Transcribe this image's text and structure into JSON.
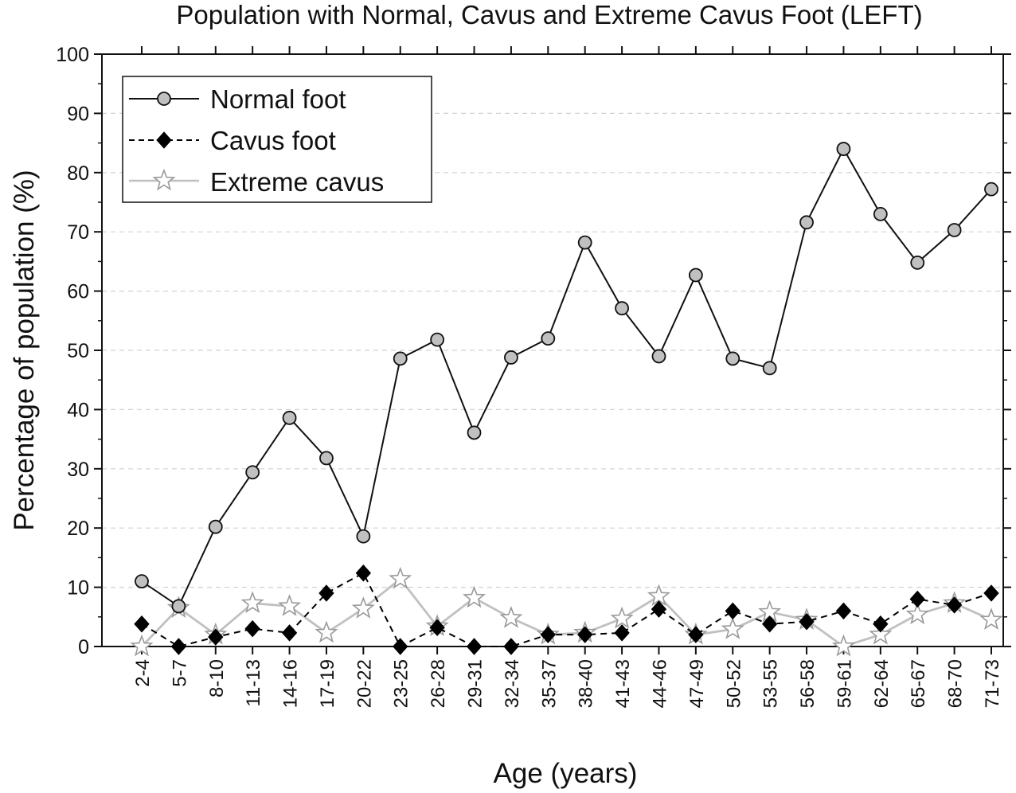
{
  "chart_data": {
    "type": "line",
    "title": "Population with Normal, Cavus and Extreme Cavus Foot (LEFT)",
    "xlabel": "Age (years)",
    "ylabel": "Percentage of population (%)",
    "ylim": [
      0,
      100
    ],
    "yticks": [
      "0",
      "10",
      "20",
      "30",
      "40",
      "50",
      "60",
      "70",
      "80",
      "90",
      "100"
    ],
    "grid": "horizontal dashed",
    "legend_position": "top-left",
    "categories": [
      "2-4",
      "5-7",
      "8-10",
      "11-13",
      "14-16",
      "17-19",
      "20-22",
      "23-25",
      "26-28",
      "29-31",
      "32-34",
      "35-37",
      "38-40",
      "41-43",
      "44-46",
      "47-49",
      "50-52",
      "53-55",
      "56-58",
      "59-61",
      "62-64",
      "65-67",
      "68-70",
      "71-73"
    ],
    "series": [
      {
        "name": "Normal foot",
        "marker": "circle",
        "line": "solid",
        "color": "#111111",
        "marker_fill": "#c0c0c0",
        "values": [
          11.0,
          6.8,
          20.2,
          29.4,
          38.6,
          31.8,
          18.6,
          48.6,
          51.8,
          36.1,
          48.8,
          52.0,
          68.2,
          57.1,
          49.0,
          62.7,
          48.6,
          47.0,
          71.6,
          84.0,
          73.0,
          64.8,
          70.3,
          77.2
        ]
      },
      {
        "name": "Cavus foot",
        "marker": "diamond",
        "line": "dashed",
        "color": "#000000",
        "marker_fill": "#000000",
        "values": [
          3.8,
          0.0,
          1.6,
          3.0,
          2.3,
          9.0,
          12.4,
          0.0,
          3.2,
          0.0,
          0.0,
          2.0,
          2.0,
          2.3,
          6.3,
          2.0,
          6.0,
          3.8,
          4.2,
          6.0,
          3.8,
          8.0,
          7.0,
          9.0
        ]
      },
      {
        "name": "Extreme cavus",
        "marker": "star",
        "line": "solid",
        "color": "#c0c0c0",
        "marker_fill": "#ffffff",
        "values": [
          0.0,
          6.5,
          2.0,
          7.3,
          6.8,
          2.3,
          6.4,
          11.4,
          3.4,
          8.2,
          4.8,
          2.0,
          2.3,
          4.7,
          8.5,
          2.0,
          2.9,
          5.8,
          4.5,
          0.0,
          2.0,
          5.4,
          7.3,
          4.5
        ]
      }
    ]
  }
}
